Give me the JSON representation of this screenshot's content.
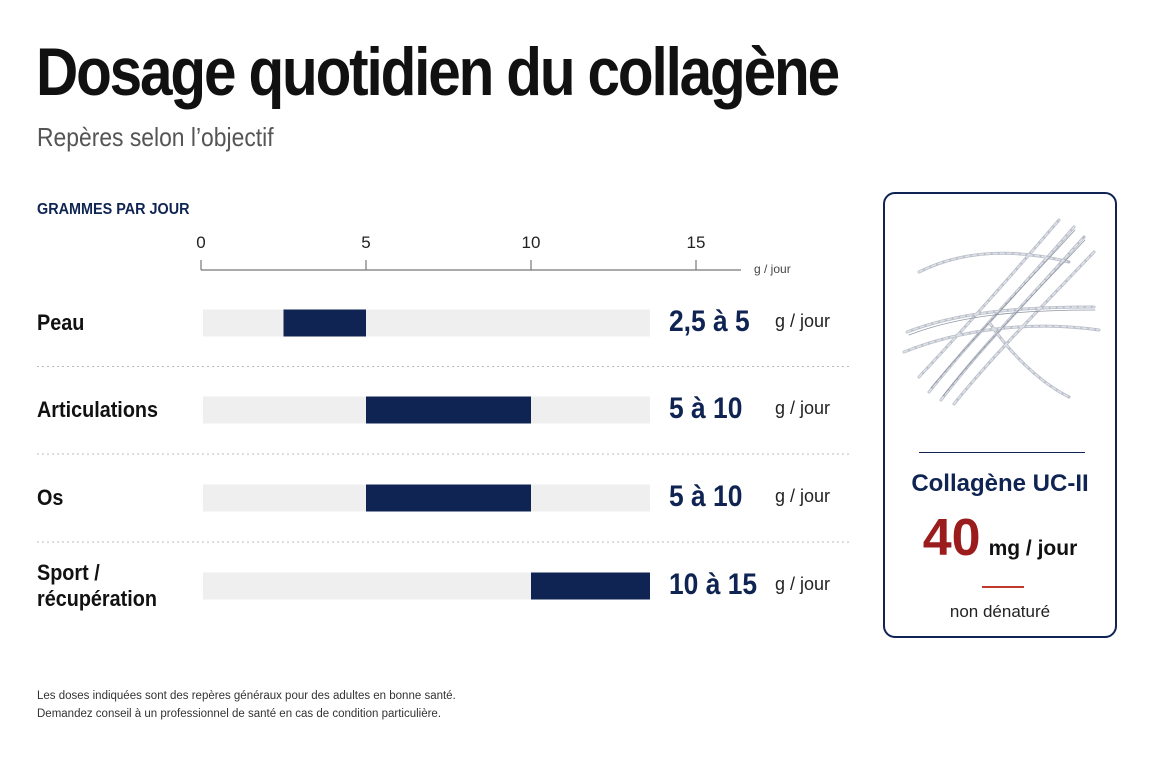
{
  "title": "Dosage quotidien du collagène",
  "subtitle": "Repères selon l’objectif",
  "chart_data": {
    "type": "bar",
    "orientation": "horizontal-range",
    "axis_title": "GRAMMES PAR JOUR",
    "axis_unit": "g / jour",
    "xlim": [
      0,
      15
    ],
    "ticks": [
      0,
      5,
      10,
      15
    ],
    "grid": false,
    "categories": [
      "Peau",
      "Articulations",
      "Os",
      "Sport / récupération"
    ],
    "rows": [
      {
        "label_lines": [
          "Peau"
        ],
        "min": 2.5,
        "max": 5,
        "value_label": "2,5 à 5",
        "unit": "g / jour"
      },
      {
        "label_lines": [
          "Articulations"
        ],
        "min": 5,
        "max": 10,
        "value_label": "5 à 10",
        "unit": "g / jour"
      },
      {
        "label_lines": [
          "Os"
        ],
        "min": 5,
        "max": 10,
        "value_label": "5 à 10",
        "unit": "g / jour"
      },
      {
        "label_lines": [
          "Sport /",
          "récupération"
        ],
        "min": 10,
        "max": 15,
        "value_label": "10 à 15",
        "unit": "g / jour"
      }
    ]
  },
  "card": {
    "name": "Collagène UC-II",
    "dose_value": "40",
    "dose_unit": "mg / jour",
    "note": "non dénaturé",
    "illustration_icon": "collagen-fibers-icon"
  },
  "footnote": [
    "Les doses indiquées sont des repères généraux pour des adultes en bonne santé.",
    "Demandez conseil à un professionnel de santé en cas de condition particulière."
  ],
  "colors": {
    "bar": "#0f2452",
    "track": "#efefef",
    "accent_red": "#9b1c1c",
    "text_navy": "#0f2452"
  }
}
